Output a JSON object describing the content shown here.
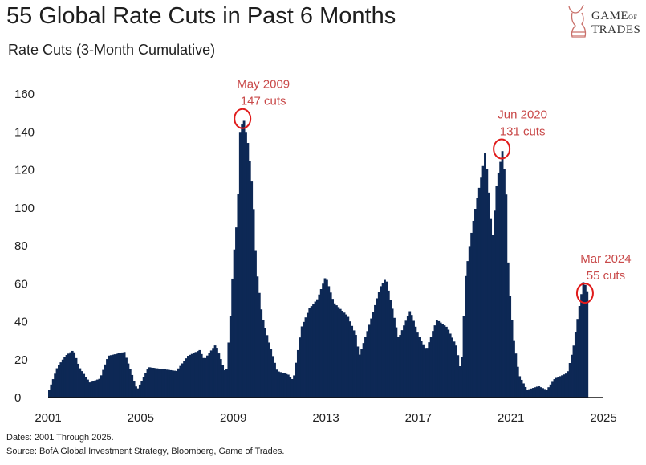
{
  "title": "55 Global Rate Cuts in Past 6 Months",
  "subtitle": "Rate Cuts (3-Month Cumulative)",
  "logo": {
    "line1": "GAME",
    "line1_small": "OF",
    "line2": "TRADES"
  },
  "footnotes": [
    "Dates: 2001 Through 2025.",
    "Source: BofA Global Investment Strategy, Bloomberg, Game of Trades."
  ],
  "colors": {
    "bars": "#0d2855",
    "annotation": "#c94a4a",
    "circle": "#e01b1b"
  },
  "chart_data": {
    "type": "area",
    "title": "55 Global Rate Cuts in Past 6 Months",
    "ylabel": "Rate Cuts (3-Month Cumulative)",
    "xlim": [
      2001,
      2025
    ],
    "ylim": [
      0,
      160
    ],
    "yticks": [
      "0",
      "20",
      "40",
      "60",
      "80",
      "100",
      "120",
      "140",
      "160"
    ],
    "xticks": [
      "2001",
      "2005",
      "2009",
      "2013",
      "2017",
      "2021",
      "2025"
    ],
    "grid": false,
    "x": [
      2001.0,
      2001.35,
      2001.7,
      2002.05,
      2002.3,
      2002.75,
      2003.2,
      2003.55,
      2004.25,
      2004.8,
      2005.3,
      2006.5,
      2007.0,
      2007.5,
      2007.7,
      2008.2,
      2008.65,
      2008.85,
      2008.95,
      2009.1,
      2009.2,
      2009.25,
      2009.4,
      2009.6,
      2009.8,
      2009.95,
      2010.2,
      2010.5,
      2010.85,
      2011.35,
      2011.55,
      2011.9,
      2012.25,
      2012.6,
      2012.95,
      2013.3,
      2013.9,
      2014.25,
      2014.4,
      2014.7,
      2014.95,
      2015.3,
      2015.55,
      2015.9,
      2016.1,
      2016.6,
      2016.95,
      2017.3,
      2017.75,
      2018.2,
      2018.6,
      2018.8,
      2019.0,
      2019.2,
      2019.45,
      2019.7,
      2019.85,
      2020.0,
      2020.15,
      2020.35,
      2020.6,
      2020.75,
      2020.85,
      2021.05,
      2021.3,
      2021.65,
      2022.15,
      2022.5,
      2022.85,
      2023.4,
      2023.65,
      2023.9,
      2024.1,
      2024.3
    ],
    "y": [
      4,
      16,
      22,
      25,
      16,
      8,
      10,
      22,
      24,
      4,
      16,
      14,
      22,
      25,
      20,
      28,
      12,
      46,
      71,
      92,
      115,
      140,
      147,
      133,
      108,
      69,
      43,
      29,
      14,
      12,
      9,
      37,
      47,
      52,
      64,
      50,
      43,
      33,
      22,
      33,
      43,
      58,
      63,
      43,
      31,
      46,
      33,
      25,
      41,
      37,
      27,
      13,
      64,
      83,
      102,
      118,
      130,
      108,
      83,
      114,
      131,
      107,
      64,
      33,
      12,
      4,
      6,
      4,
      10,
      13,
      26,
      47,
      62,
      54
    ],
    "annotations": [
      {
        "label": "May 2009",
        "sub": "147 cuts",
        "x": 2009.4,
        "y": 147
      },
      {
        "label": "Jun 2020",
        "sub": "131 cuts",
        "x": 2020.6,
        "y": 131
      },
      {
        "label": "Mar 2024",
        "sub": "55 cuts",
        "x": 2024.2,
        "y": 55
      }
    ]
  }
}
